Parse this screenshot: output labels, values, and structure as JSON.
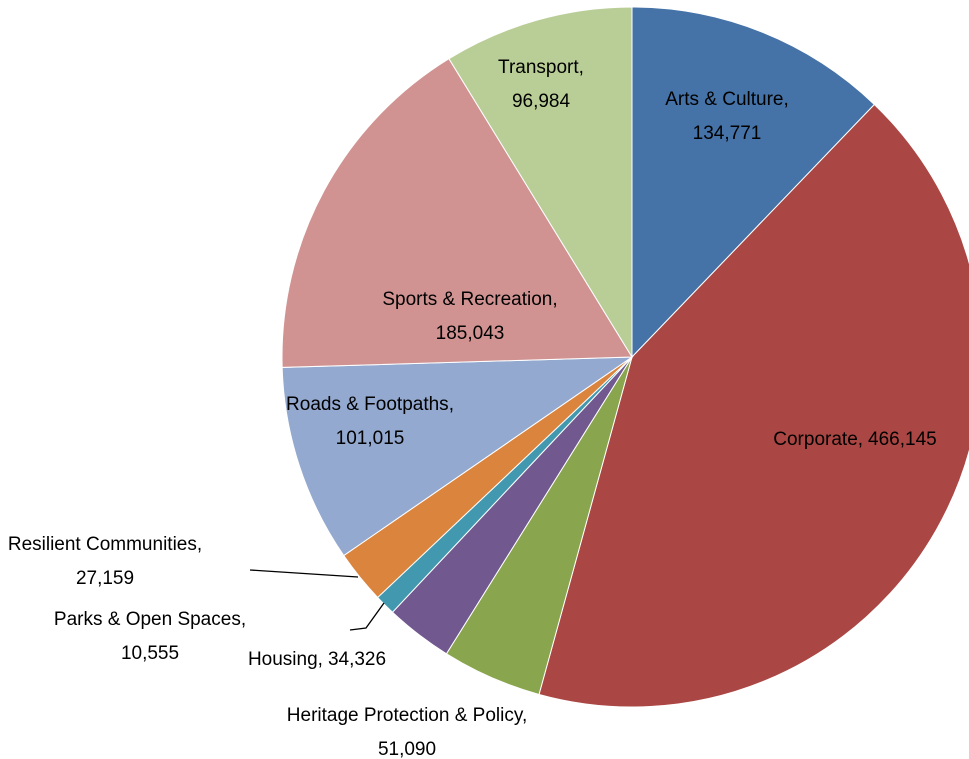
{
  "chart_data": {
    "type": "pie",
    "categories": [
      "Arts & Culture",
      "Corporate",
      "Heritage Protection & Policy",
      "Housing",
      "Parks & Open Spaces",
      "Resilient Communities",
      "Roads & Footpaths",
      "Sports & Recreation",
      "Transport"
    ],
    "values": [
      134771,
      466145,
      51090,
      34326,
      10555,
      27159,
      101015,
      185043,
      96984
    ],
    "value_labels": [
      "134,771",
      "466,145",
      "51,090",
      "34,326",
      "10,555",
      "27,159",
      "101,015",
      "185,043",
      "96,984"
    ],
    "separator": ",",
    "colors": [
      "#4572a7",
      "#aa4643",
      "#89a54e",
      "#71588f",
      "#4198af",
      "#db843d",
      "#93a9cf",
      "#d19392",
      "#b9cd96"
    ]
  }
}
